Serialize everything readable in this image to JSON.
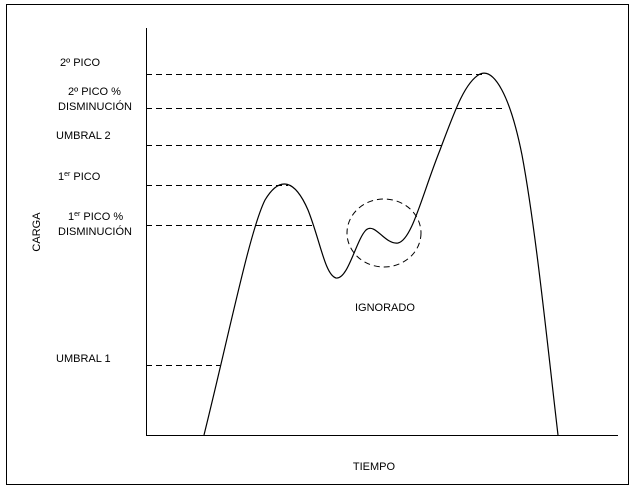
{
  "diagram": {
    "labels": {
      "second_peak": "2º PICO",
      "second_peak_pct_line1": "2º PICO %",
      "second_peak_pct_line2": "DISMINUCIÓN",
      "threshold2": "UMBRAL 2",
      "first_peak_base": "1",
      "first_peak_sup": "er",
      "first_peak_rest": " PICO",
      "first_peak_pct_base": "1",
      "first_peak_pct_sup": "er",
      "first_peak_pct_rest": " PICO %",
      "first_peak_pct_line2": "DISMINUCIÓN",
      "threshold1": "UMBRAL 1",
      "ignored": "IGNORADO",
      "y_axis": "CARGA",
      "x_axis": "TIEMPO"
    },
    "colors": {
      "line": "#000000",
      "background": "#ffffff"
    }
  }
}
